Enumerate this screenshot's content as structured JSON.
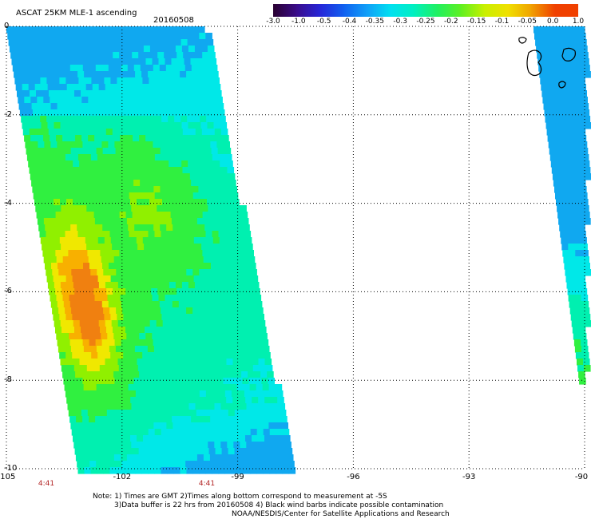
{
  "header": {
    "title": "ASCAT 25KM MLE-1 ascending",
    "date": "20160508"
  },
  "colorbar": {
    "labels": [
      "-3.0",
      "-1.0",
      "-0.5",
      "-0.4",
      "-0.35",
      "-0.3",
      "-0.25",
      "-0.2",
      "-0.15",
      "-0.1",
      "-0.05",
      "0.0",
      "1.0"
    ],
    "colors": [
      "#2a0030",
      "#3a0c8a",
      "#2626d8",
      "#1060f0",
      "#10a0f8",
      "#00e0f0",
      "#00f0c0",
      "#20f060",
      "#60f020",
      "#c8f000",
      "#f0e000",
      "#f0a000",
      "#f04000"
    ]
  },
  "axes": {
    "y_ticks": [
      "0",
      "-2",
      "-4",
      "-6",
      "-8",
      "-10"
    ],
    "x_ticks": [
      "-105",
      "-102",
      "-99",
      "-96",
      "-93",
      "-90"
    ],
    "pass_times": [
      "4:41",
      "4:41"
    ]
  },
  "notes": {
    "line1": "Note: 1) Times are GMT 2)Times along bottom correspond to measurement at -5S",
    "line2": "3)Data buffer is 22 hrs from 20160508 4) Black wind barbs indicate possible contamination",
    "line3": "NOAA/NESDIS/Center for Satellite Applications and Research"
  }
}
